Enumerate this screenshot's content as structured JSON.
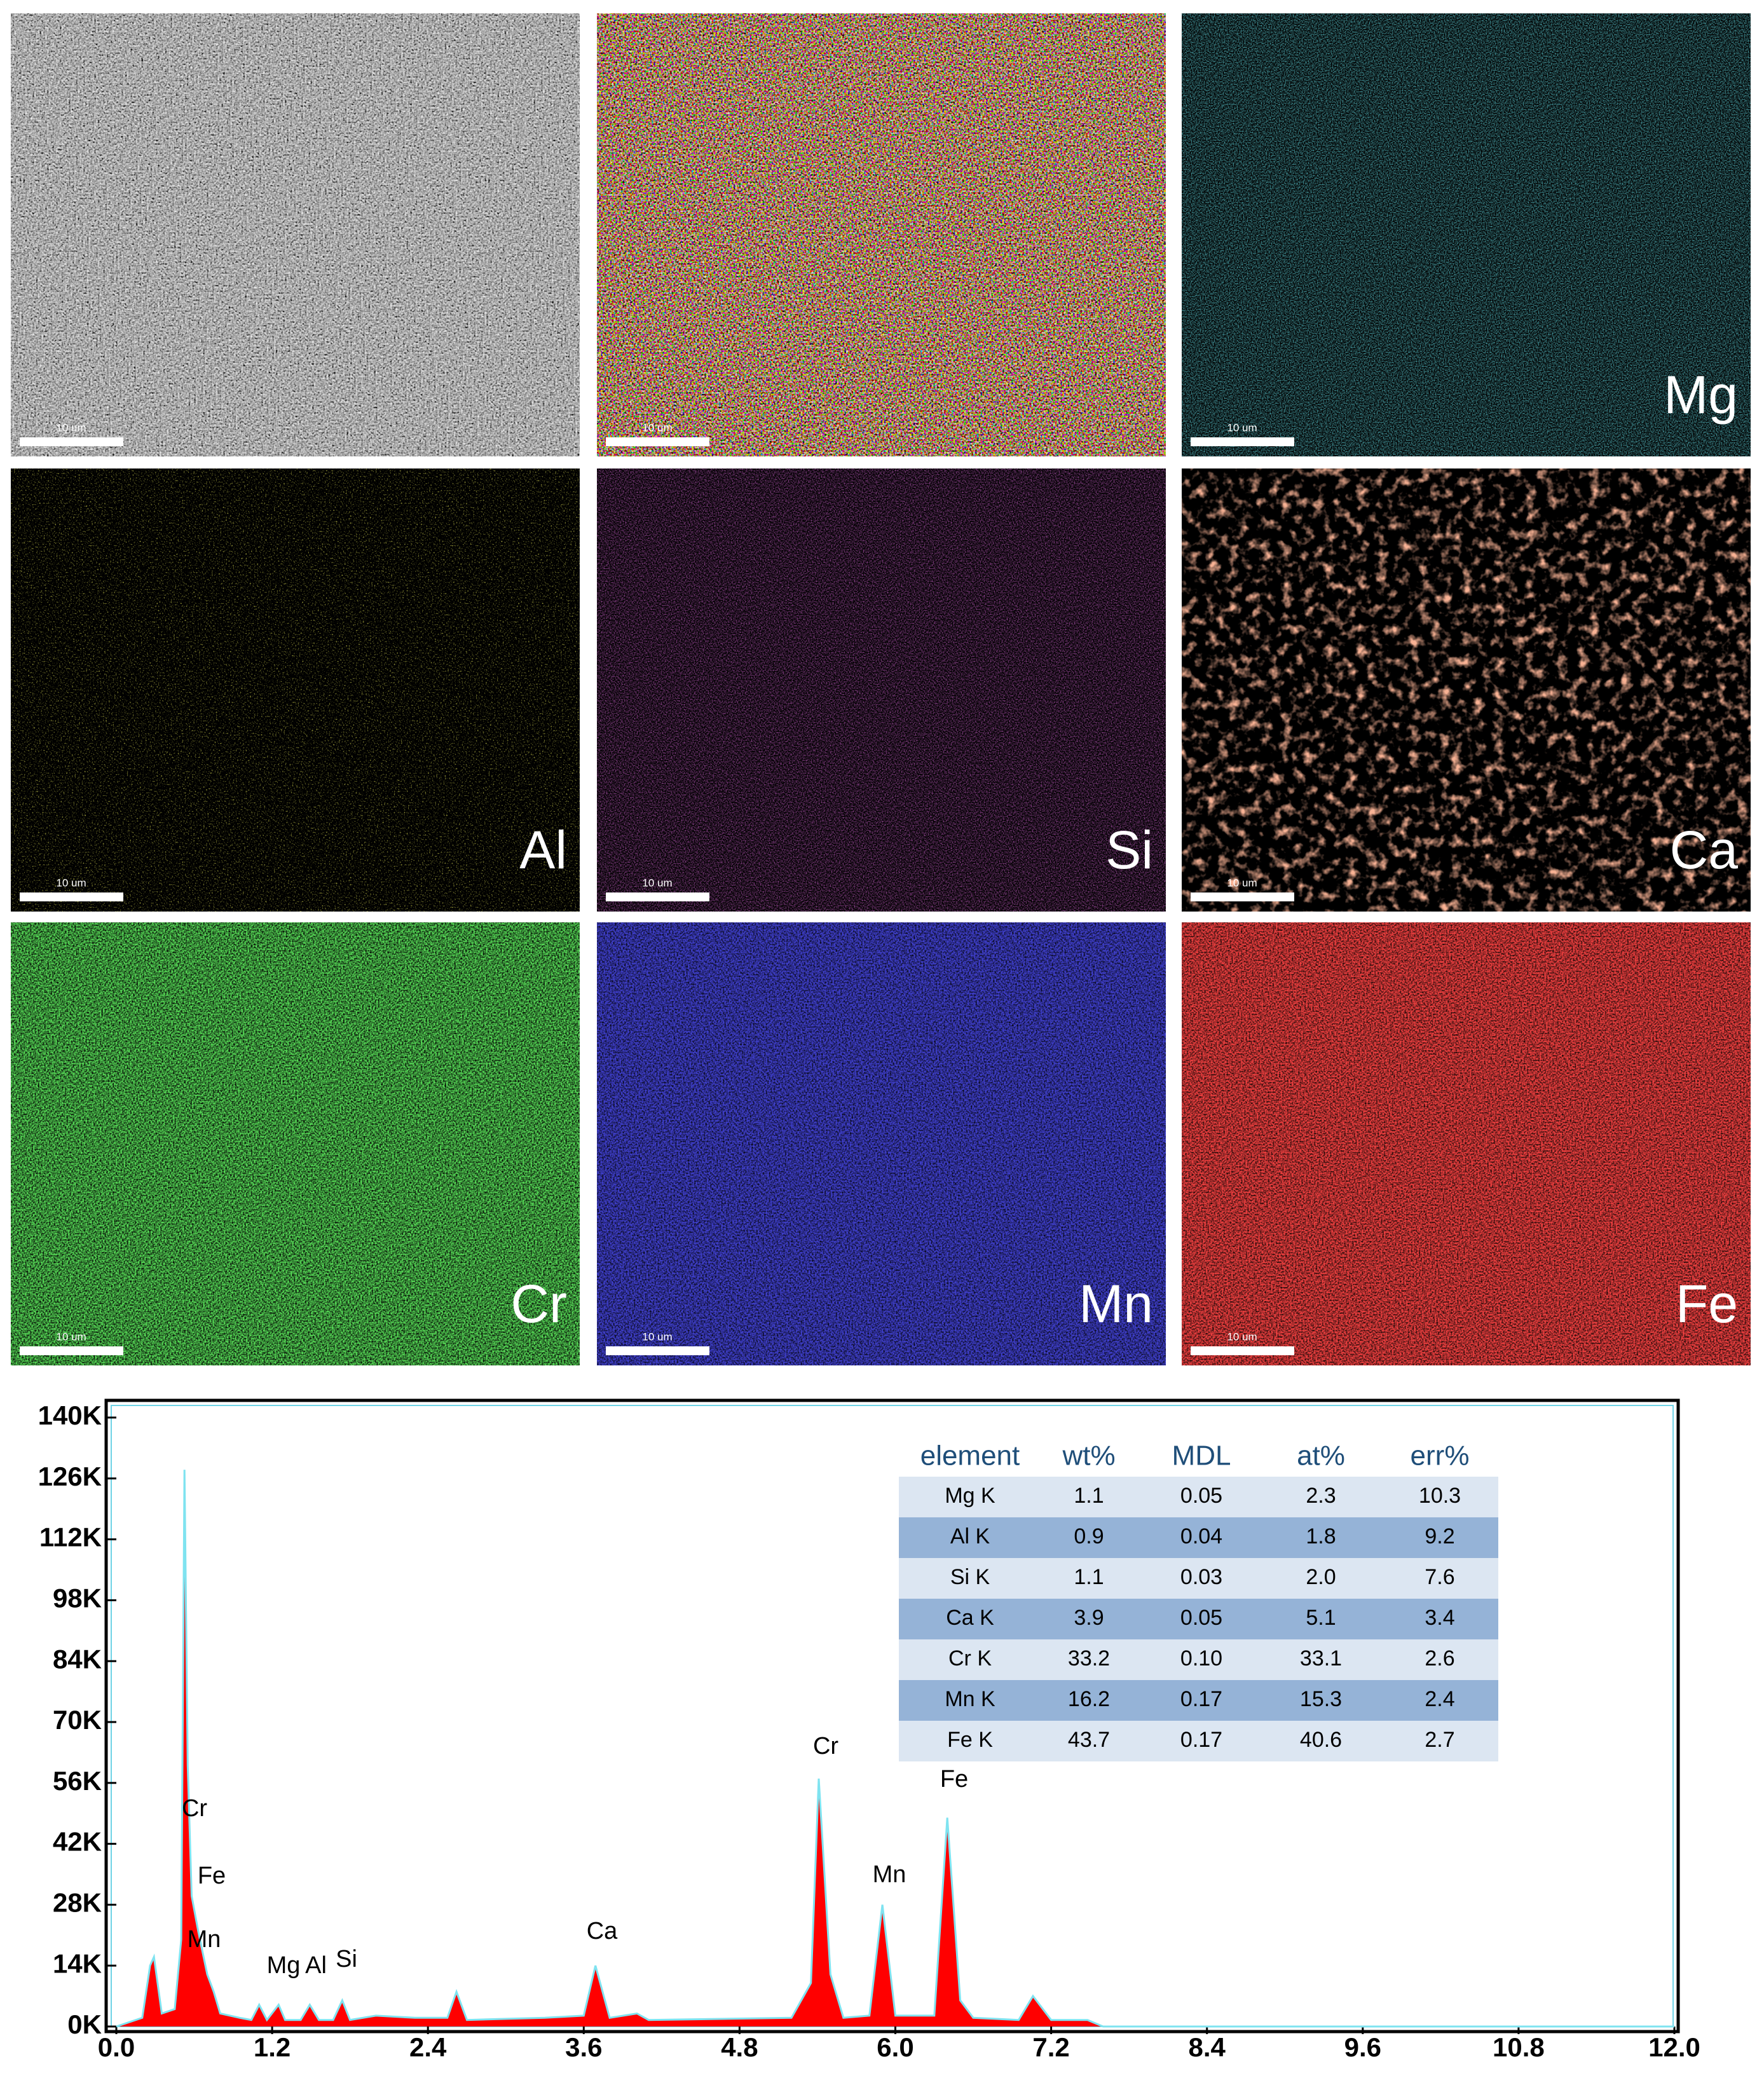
{
  "maps": {
    "scale_bar": "10 um",
    "element_labels": [
      "Mg",
      "Al",
      "Si",
      "Ca",
      "Cr",
      "Mn",
      "Fe"
    ]
  },
  "chart_data": {
    "type": "area",
    "x": [
      0.0,
      0.2,
      0.26,
      0.29,
      0.35,
      0.45,
      0.5,
      0.525,
      0.55,
      0.58,
      0.63,
      0.7,
      0.75,
      0.8,
      0.95,
      1.04,
      1.1,
      1.16,
      1.25,
      1.3,
      1.42,
      1.49,
      1.56,
      1.67,
      1.74,
      1.8,
      2.0,
      2.3,
      2.55,
      2.62,
      2.7,
      3.3,
      3.6,
      3.69,
      3.8,
      4.01,
      4.1,
      5.2,
      5.35,
      5.41,
      5.5,
      5.6,
      5.8,
      5.9,
      6.0,
      6.3,
      6.4,
      6.5,
      6.6,
      6.95,
      7.06,
      7.2,
      7.48,
      7.6,
      12.0
    ],
    "values": [
      0,
      2000,
      14000,
      16000,
      3000,
      4000,
      20000,
      128000,
      60000,
      30000,
      22000,
      12000,
      8000,
      3000,
      2000,
      1500,
      5000,
      1500,
      5000,
      1500,
      1500,
      5000,
      1500,
      1500,
      6000,
      1500,
      2500,
      2000,
      2000,
      8000,
      1500,
      2000,
      2500,
      14000,
      2000,
      3000,
      1500,
      2000,
      10000,
      57000,
      12000,
      2000,
      2500,
      28000,
      2500,
      2500,
      48000,
      6000,
      2000,
      1500,
      7000,
      1500,
      1500,
      0,
      0
    ],
    "color": "#ff0000",
    "xlim": [
      0,
      12
    ],
    "ylim": [
      0,
      140000
    ],
    "xticks": [
      {
        "value": 0,
        "label": "0.0"
      },
      1.2,
      2.4,
      3.6,
      4.8,
      {
        "value": 6,
        "label": "6.0"
      },
      7.2,
      8.4,
      9.6,
      10.8,
      {
        "value": 12,
        "label": "12.0"
      }
    ],
    "yticks": [
      {
        "value": 0,
        "label": "0K"
      },
      {
        "value": 14000,
        "label": "14K"
      },
      {
        "value": 28000,
        "label": "28K"
      },
      {
        "value": 42000,
        "label": "42K"
      },
      {
        "value": 56000,
        "label": "56K"
      },
      {
        "value": 70000,
        "label": "70K"
      },
      {
        "value": 84000,
        "label": "84K"
      },
      {
        "value": 98000,
        "label": "98K"
      },
      {
        "value": 112000,
        "label": "112K"
      },
      {
        "value": 126000,
        "label": "126K"
      },
      {
        "value": 140000,
        "label": "140K"
      }
    ],
    "annotations": [
      "Cr",
      "Fe",
      "Mn",
      "Mg",
      "Al",
      "Si",
      "Ca",
      "Cr",
      "Mn",
      "Fe"
    ],
    "table": {
      "columns": [
        "element",
        "wt%",
        "MDL",
        "at%",
        "err%"
      ],
      "rows": [
        [
          "Mg K",
          "1.1",
          "0.05",
          "2.3",
          "10.3"
        ],
        [
          "Al K",
          "0.9",
          "0.04",
          "1.8",
          "9.2"
        ],
        [
          "Si K",
          "1.1",
          "0.03",
          "2.0",
          "7.6"
        ],
        [
          "Ca K",
          "3.9",
          "0.05",
          "5.1",
          "3.4"
        ],
        [
          "Cr K",
          "33.2",
          "0.10",
          "33.1",
          "2.6"
        ],
        [
          "Mn K",
          "16.2",
          "0.17",
          "15.3",
          "2.4"
        ],
        [
          "Fe K",
          "43.7",
          "0.17",
          "40.6",
          "2.7"
        ]
      ]
    }
  }
}
